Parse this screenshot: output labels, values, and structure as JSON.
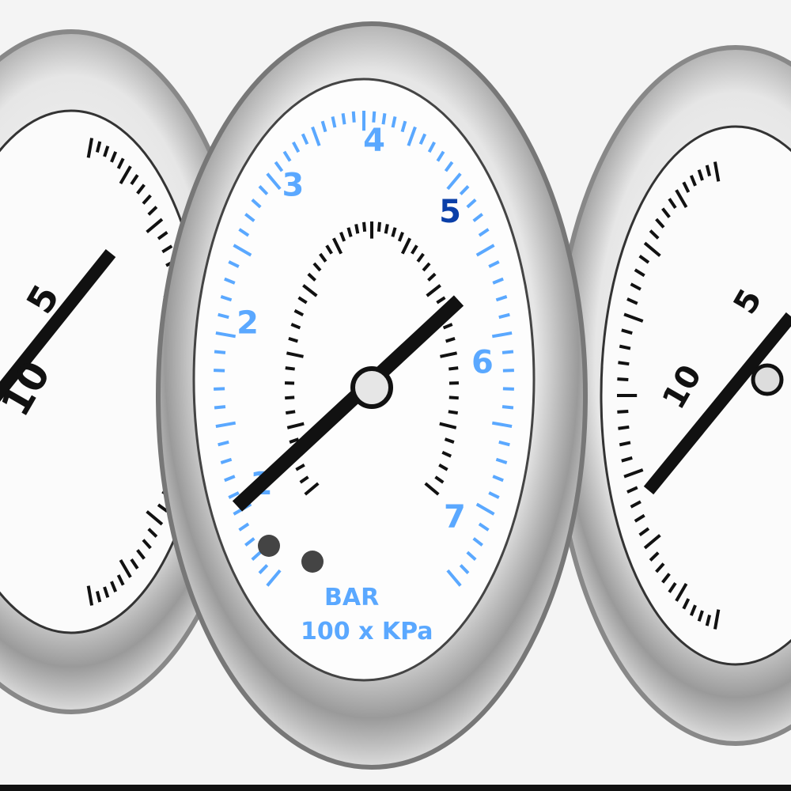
{
  "photo": {
    "subject": "pressure gauges",
    "colors": {
      "accent_blue": "#5aa8ff",
      "dark_blue": "#0a3fa8",
      "ink": "#111111",
      "steel": "#c8c8c8"
    },
    "center_gauge": {
      "scale_numbers": [
        "1",
        "2",
        "3",
        "4",
        "5",
        "6",
        "7"
      ],
      "unit_primary": "BAR",
      "unit_secondary": "100 x KPa"
    },
    "left_gauge": {
      "scale_numbers": [
        "10",
        "5"
      ]
    },
    "right_gauge": {
      "scale_numbers": [
        "10",
        "5"
      ]
    }
  }
}
